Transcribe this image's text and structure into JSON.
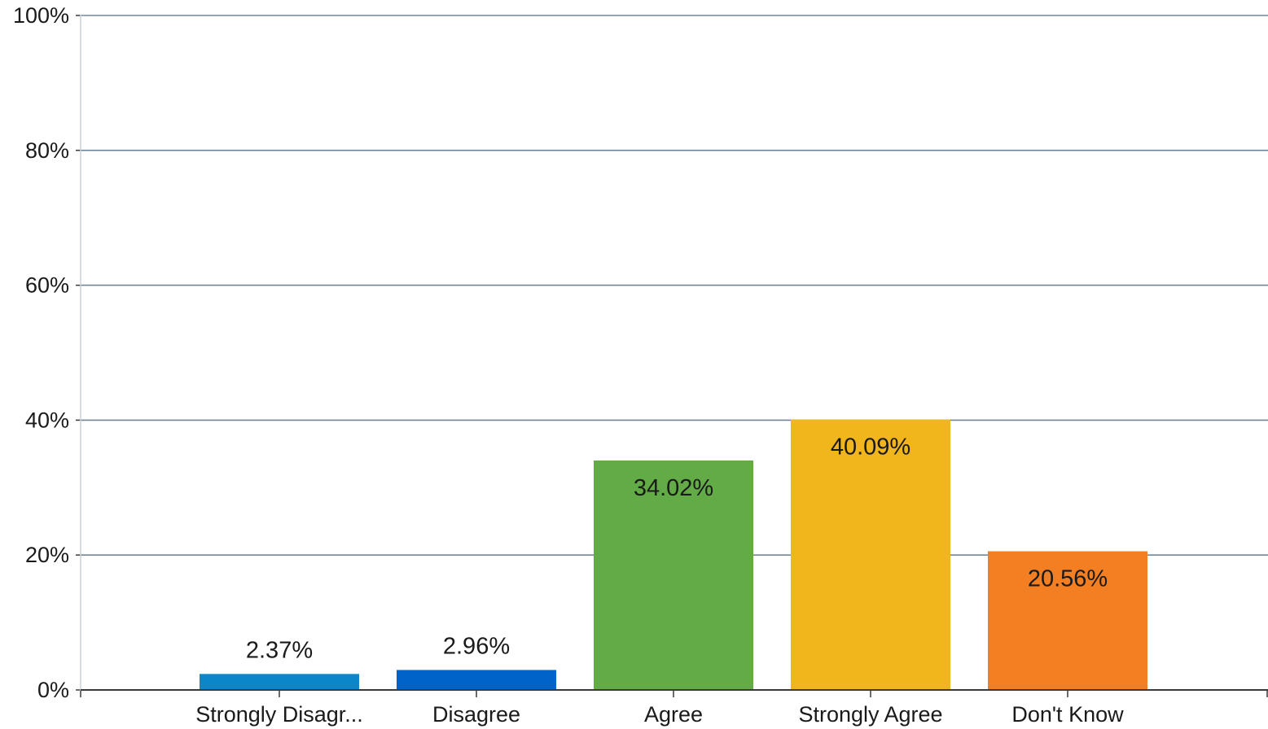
{
  "chart_data": {
    "type": "bar",
    "categories": [
      "Strongly Disagr...",
      "Disagree",
      "Agree",
      "Strongly Agree",
      "Don't Know"
    ],
    "values": [
      2.37,
      2.96,
      34.02,
      40.09,
      20.56
    ],
    "value_labels": [
      "2.37%",
      "2.96%",
      "34.02%",
      "40.09%",
      "20.56%"
    ],
    "colors": [
      "#0a86c9",
      "#0063c9",
      "#62ab46",
      "#f2b61d",
      "#f47e22"
    ],
    "ylim": [
      0,
      100
    ],
    "yticks": [
      0,
      20,
      40,
      60,
      80,
      100
    ],
    "ytick_labels": [
      "0%",
      "20%",
      "40%",
      "60%",
      "80%",
      "100%"
    ],
    "grid": true,
    "grid_color": "#6f8799",
    "legend": "none"
  }
}
